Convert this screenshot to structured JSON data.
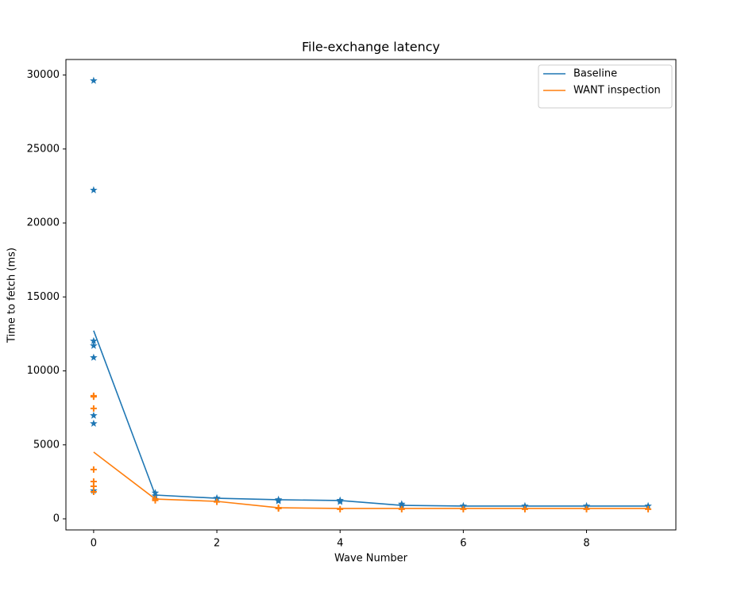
{
  "chart_data": {
    "type": "line",
    "title": "File-exchange latency",
    "x_label": "Wave Number",
    "y_label": "Time to fetch (ms)",
    "x": [
      0,
      1,
      2,
      3,
      4,
      5,
      6,
      7,
      8,
      9
    ],
    "xlim": [
      -0.45,
      9.45
    ],
    "xticks": [
      0,
      2,
      4,
      6,
      8
    ],
    "ylim": [
      -750,
      31050
    ],
    "yticks": [
      0,
      5000,
      10000,
      15000,
      20000,
      25000,
      30000
    ],
    "legend": "upper right",
    "series": [
      {
        "name": "Baseline",
        "color": "#1f77b4",
        "marker": "star",
        "values": [
          12720,
          1610,
          1390,
          1290,
          1235,
          910,
          860,
          860,
          860,
          860
        ],
        "scatter_x": [
          0,
          0,
          0,
          0,
          0,
          0,
          0,
          0,
          1,
          1,
          2,
          3,
          3,
          4,
          4,
          5,
          5,
          6,
          7,
          8,
          9
        ],
        "scatter_y": [
          29620,
          22220,
          12020,
          11700,
          10900,
          6980,
          6440,
          1900,
          1750,
          1550,
          1400,
          1300,
          1200,
          1250,
          1150,
          1000,
          900,
          870,
          870,
          870,
          870
        ]
      },
      {
        "name": "WANT inspection",
        "color": "#ff7f0e",
        "marker": "plus",
        "values": [
          4510,
          1340,
          1180,
          750,
          700,
          700,
          700,
          700,
          700,
          700
        ],
        "scatter_x": [
          0,
          0,
          0,
          0,
          0,
          0,
          0,
          1,
          1,
          2,
          3,
          3,
          4,
          5,
          6,
          7,
          8,
          9
        ],
        "scatter_y": [
          8320,
          8250,
          7460,
          3330,
          2520,
          2200,
          1825,
          1250,
          1350,
          1150,
          700,
          750,
          650,
          650,
          650,
          650,
          650,
          650
        ]
      }
    ]
  }
}
